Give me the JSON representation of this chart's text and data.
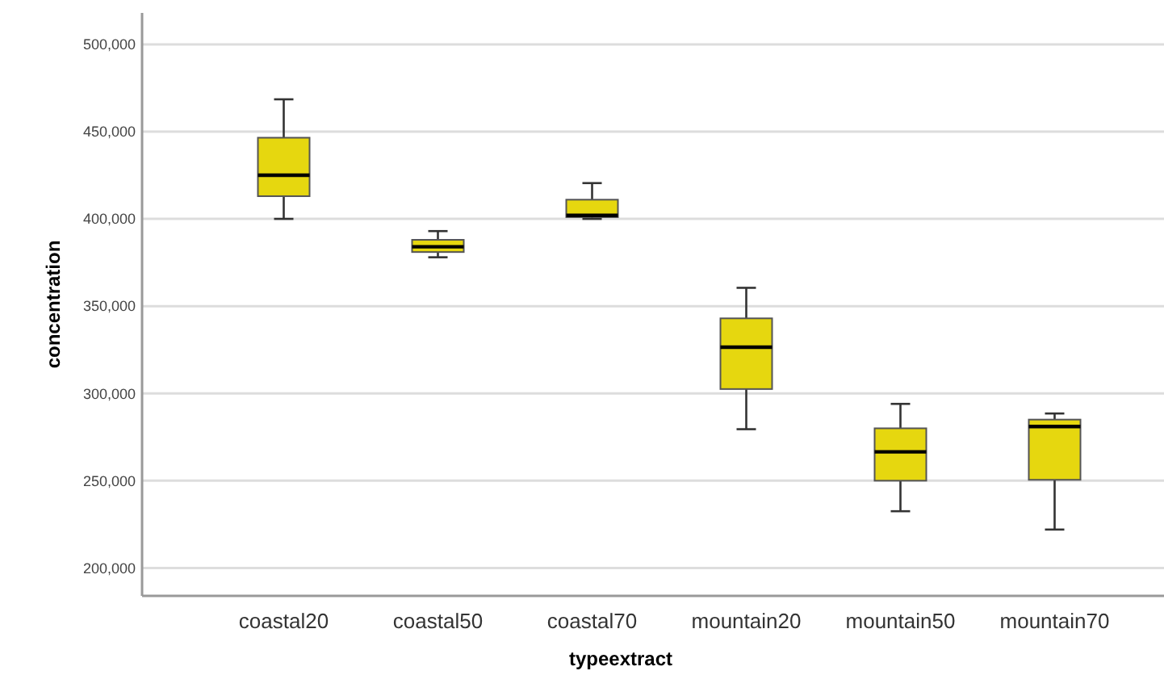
{
  "chart_data": {
    "type": "box",
    "xlabel": "typeextract",
    "ylabel": "concentration",
    "categories": [
      "coastal20",
      "coastal50",
      "coastal70",
      "mountain20",
      "mountain50",
      "mountain70"
    ],
    "color": "#e6d70f",
    "ylim": [
      184000,
      518000
    ],
    "yticks": [
      {
        "value": 200000,
        "label": "200,000"
      },
      {
        "value": 250000,
        "label": "250,000"
      },
      {
        "value": 300000,
        "label": "300,000"
      },
      {
        "value": 350000,
        "label": "350,000"
      },
      {
        "value": 400000,
        "label": "400,000"
      },
      {
        "value": 450000,
        "label": "450,000"
      },
      {
        "value": 500000,
        "label": "500,000"
      }
    ],
    "grid": "y",
    "boxes": [
      {
        "low": 400000,
        "q1": 413000,
        "median": 425000,
        "q3": 446500,
        "high": 468500
      },
      {
        "low": 378000,
        "q1": 381000,
        "median": 384000,
        "q3": 388000,
        "high": 393000
      },
      {
        "low": 400000,
        "q1": 401000,
        "median": 402000,
        "q3": 411000,
        "high": 420500
      },
      {
        "low": 279500,
        "q1": 302500,
        "median": 326500,
        "q3": 343000,
        "high": 360500
      },
      {
        "low": 232500,
        "q1": 250000,
        "median": 266500,
        "q3": 280000,
        "high": 294000
      },
      {
        "low": 222000,
        "q1": 250500,
        "median": 281000,
        "q3": 285000,
        "high": 288500
      }
    ]
  }
}
